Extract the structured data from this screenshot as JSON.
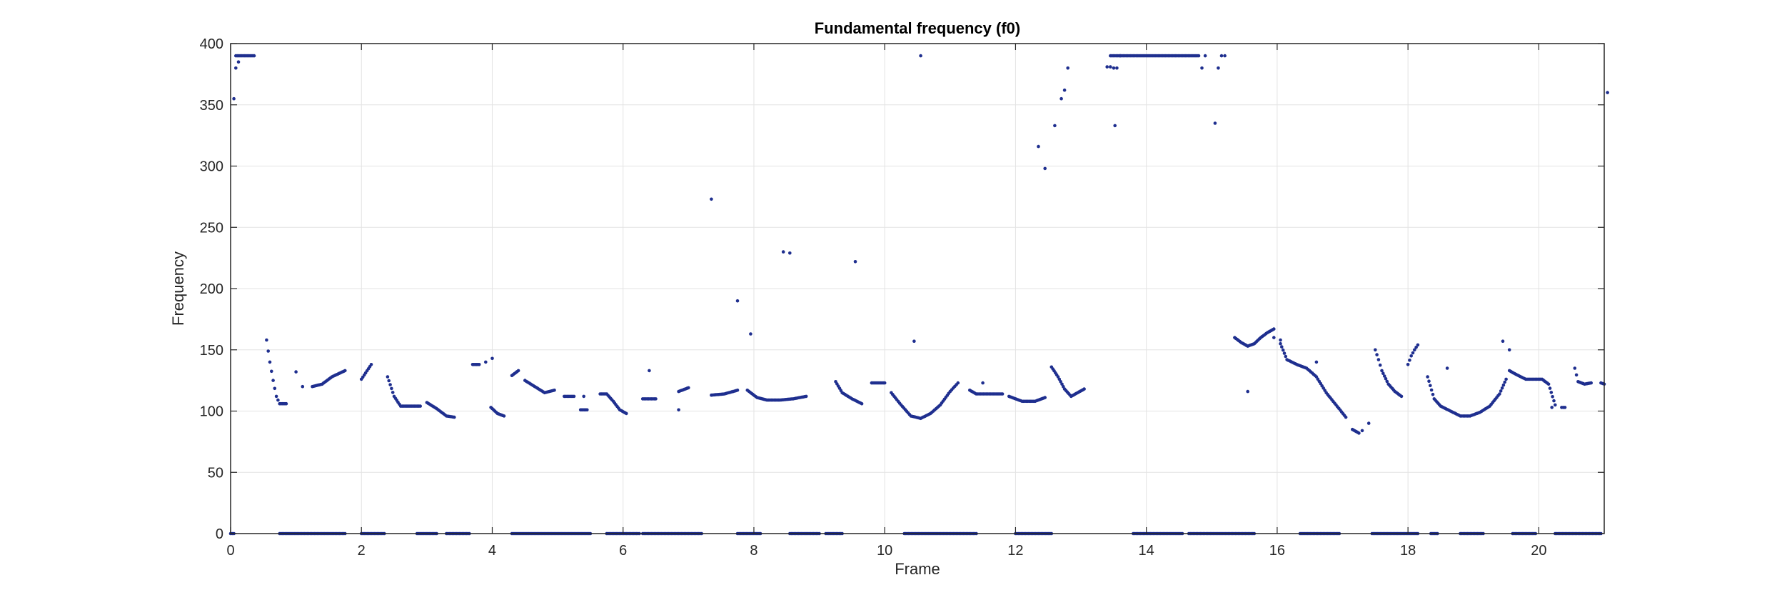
{
  "chart_data": {
    "type": "scatter",
    "title": "Fundamental frequency (f0)",
    "xlabel": "Frame",
    "ylabel": "Frequency",
    "xlim": [
      0,
      21
    ],
    "ylim": [
      0,
      400
    ],
    "xticks": [
      "0",
      "2",
      "4",
      "6",
      "8",
      "10",
      "12",
      "14",
      "16",
      "18",
      "20"
    ],
    "yticks": [
      "0",
      "50",
      "100",
      "150",
      "200",
      "250",
      "300",
      "350",
      "400"
    ],
    "grid": true,
    "marker_color": "#1f2f8f",
    "series": [
      {
        "segments": [
          {
            "x": [
              0.0,
              0.05
            ],
            "y": [
              0,
              0
            ]
          },
          {
            "x": [
              0.75,
              1.75
            ],
            "y": [
              0,
              0
            ]
          },
          {
            "x": [
              2.0,
              2.35
            ],
            "y": [
              0,
              0
            ]
          },
          {
            "x": [
              2.85,
              3.15
            ],
            "y": [
              0,
              0
            ]
          },
          {
            "x": [
              3.3,
              3.65
            ],
            "y": [
              0,
              0
            ]
          },
          {
            "x": [
              4.3,
              5.5
            ],
            "y": [
              0,
              0
            ]
          },
          {
            "x": [
              5.75,
              6.25
            ],
            "y": [
              0,
              0
            ]
          },
          {
            "x": [
              6.3,
              7.2
            ],
            "y": [
              0,
              0
            ]
          },
          {
            "x": [
              7.75,
              8.1
            ],
            "y": [
              0,
              0
            ]
          },
          {
            "x": [
              8.55,
              9.0
            ],
            "y": [
              0,
              0
            ]
          },
          {
            "x": [
              9.1,
              9.35
            ],
            "y": [
              0,
              0
            ]
          },
          {
            "x": [
              10.3,
              11.4
            ],
            "y": [
              0,
              0
            ]
          },
          {
            "x": [
              12.0,
              12.55
            ],
            "y": [
              0,
              0
            ]
          },
          {
            "x": [
              13.8,
              14.55
            ],
            "y": [
              0,
              0
            ]
          },
          {
            "x": [
              14.65,
              15.65
            ],
            "y": [
              0,
              0
            ]
          },
          {
            "x": [
              16.35,
              16.95
            ],
            "y": [
              0,
              0
            ]
          },
          {
            "x": [
              17.45,
              18.15
            ],
            "y": [
              0,
              0
            ]
          },
          {
            "x": [
              18.35,
              18.45
            ],
            "y": [
              0,
              0
            ]
          },
          {
            "x": [
              18.8,
              19.15
            ],
            "y": [
              0,
              0
            ]
          },
          {
            "x": [
              19.6,
              19.95
            ],
            "y": [
              0,
              0
            ]
          },
          {
            "x": [
              20.25,
              20.95
            ],
            "y": [
              0,
              0
            ]
          },
          {
            "x": [
              0.08,
              0.36
            ],
            "y": [
              390,
              390
            ]
          },
          {
            "x": [
              0.55,
              0.6,
              0.65,
              0.7,
              0.75,
              0.85
            ],
            "y": [
              158,
              140,
              125,
              112,
              106,
              106
            ]
          },
          {
            "x": [
              1.25,
              1.4,
              1.55,
              1.75
            ],
            "y": [
              120,
              122,
              128,
              133
            ]
          },
          {
            "x": [
              2.0,
              2.15
            ],
            "y": [
              126,
              138
            ]
          },
          {
            "x": [
              2.4,
              2.5,
              2.6,
              2.75,
              2.9
            ],
            "y": [
              128,
              112,
              104,
              104,
              104
            ]
          },
          {
            "x": [
              3.0,
              3.15,
              3.3,
              3.42
            ],
            "y": [
              107,
              102,
              96,
              95
            ]
          },
          {
            "x": [
              3.7,
              3.8
            ],
            "y": [
              138,
              138
            ]
          },
          {
            "x": [
              3.98,
              4.08,
              4.18
            ],
            "y": [
              103,
              98,
              96
            ]
          },
          {
            "x": [
              4.3,
              4.4
            ],
            "y": [
              129,
              133
            ]
          },
          {
            "x": [
              4.5,
              4.65,
              4.8,
              4.95
            ],
            "y": [
              125,
              120,
              115,
              117
            ]
          },
          {
            "x": [
              5.1,
              5.25
            ],
            "y": [
              112,
              112
            ]
          },
          {
            "x": [
              5.35,
              5.45
            ],
            "y": [
              101,
              101
            ]
          },
          {
            "x": [
              5.65,
              5.75,
              5.85,
              5.95,
              6.05
            ],
            "y": [
              114,
              114,
              108,
              101,
              98
            ]
          },
          {
            "x": [
              6.3,
              6.5
            ],
            "y": [
              110,
              110
            ]
          },
          {
            "x": [
              6.85,
              7.0
            ],
            "y": [
              116,
              119
            ]
          },
          {
            "x": [
              7.35,
              7.55,
              7.75
            ],
            "y": [
              113,
              114,
              117
            ]
          },
          {
            "x": [
              7.9,
              8.05,
              8.2,
              8.4,
              8.6,
              8.8
            ],
            "y": [
              117,
              111,
              109,
              109,
              110,
              112
            ]
          },
          {
            "x": [
              9.25,
              9.35,
              9.5,
              9.65
            ],
            "y": [
              124,
              115,
              110,
              106
            ]
          },
          {
            "x": [
              9.8,
              10.0
            ],
            "y": [
              123,
              123
            ]
          },
          {
            "x": [
              10.1,
              10.25,
              10.4,
              10.55,
              10.7,
              10.85,
              11.0,
              11.12
            ],
            "y": [
              115,
              105,
              96,
              94,
              98,
              105,
              116,
              123
            ]
          },
          {
            "x": [
              11.3,
              11.4,
              11.6,
              11.8
            ],
            "y": [
              117,
              114,
              114,
              114
            ]
          },
          {
            "x": [
              11.9,
              12.1,
              12.3,
              12.45
            ],
            "y": [
              112,
              108,
              108,
              111
            ]
          },
          {
            "x": [
              12.55,
              12.65,
              12.75,
              12.85,
              12.95,
              13.05
            ],
            "y": [
              136,
              128,
              118,
              112,
              115,
              118
            ]
          },
          {
            "x": [
              13.45,
              14.8
            ],
            "y": [
              390,
              390
            ]
          },
          {
            "x": [
              15.35,
              15.45,
              15.55,
              15.65,
              15.75,
              15.85,
              15.95
            ],
            "y": [
              160,
              156,
              153,
              155,
              160,
              164,
              167
            ]
          },
          {
            "x": [
              16.05,
              16.15,
              16.3,
              16.45,
              16.6,
              16.75,
              16.9,
              17.05
            ],
            "y": [
              155,
              142,
              138,
              135,
              128,
              115,
              105,
              95
            ]
          },
          {
            "x": [
              17.15,
              17.25
            ],
            "y": [
              85,
              82
            ]
          },
          {
            "x": [
              17.5,
              17.55,
              17.6,
              17.7,
              17.8,
              17.9
            ],
            "y": [
              150,
              142,
              133,
              122,
              116,
              112
            ]
          },
          {
            "x": [
              18.0,
              18.05,
              18.1,
              18.15
            ],
            "y": [
              138,
              145,
              150,
              154
            ]
          },
          {
            "x": [
              18.3,
              18.4,
              18.5,
              18.65,
              18.8,
              18.95,
              19.1,
              19.25,
              19.4,
              19.5
            ],
            "y": [
              128,
              110,
              104,
              100,
              96,
              96,
              99,
              104,
              114,
              126
            ]
          },
          {
            "x": [
              19.55,
              19.65,
              19.8,
              19.95,
              20.05,
              20.15,
              20.25
            ],
            "y": [
              133,
              130,
              126,
              126,
              126,
              122,
              105
            ]
          },
          {
            "x": [
              20.35,
              20.4
            ],
            "y": [
              103,
              103
            ]
          },
          {
            "x": [
              20.55,
              20.6,
              20.7,
              20.8
            ],
            "y": [
              135,
              124,
              122,
              123
            ]
          },
          {
            "x": [
              20.95,
              21.0
            ],
            "y": [
              123,
              122
            ]
          }
        ],
        "points": {
          "x": [
            0.05,
            0.08,
            0.12,
            1.0,
            1.1,
            3.9,
            4.0,
            5.4,
            6.4,
            6.85,
            7.35,
            7.75,
            7.95,
            8.45,
            8.55,
            9.55,
            10.45,
            10.55,
            11.5,
            12.35,
            12.45,
            12.6,
            12.7,
            12.75,
            12.8,
            13.4,
            13.45,
            13.5,
            13.52,
            13.55,
            13.6,
            14.85,
            14.9,
            15.05,
            15.1,
            15.15,
            15.2,
            15.55,
            15.95,
            16.05,
            16.6,
            17.3,
            17.4,
            18.6,
            19.45,
            19.55,
            20.2,
            21.05
          ],
          "y": [
            355,
            380,
            385,
            132,
            120,
            140,
            143,
            112,
            133,
            101,
            273,
            190,
            163,
            230,
            229,
            222,
            157,
            390,
            123,
            316,
            298,
            333,
            355,
            362,
            380,
            381,
            381,
            380,
            333,
            380,
            390,
            380,
            390,
            335,
            380,
            390,
            390,
            116,
            160,
            158,
            140,
            84,
            90,
            135,
            157,
            150,
            103,
            360
          ]
        }
      }
    ]
  }
}
